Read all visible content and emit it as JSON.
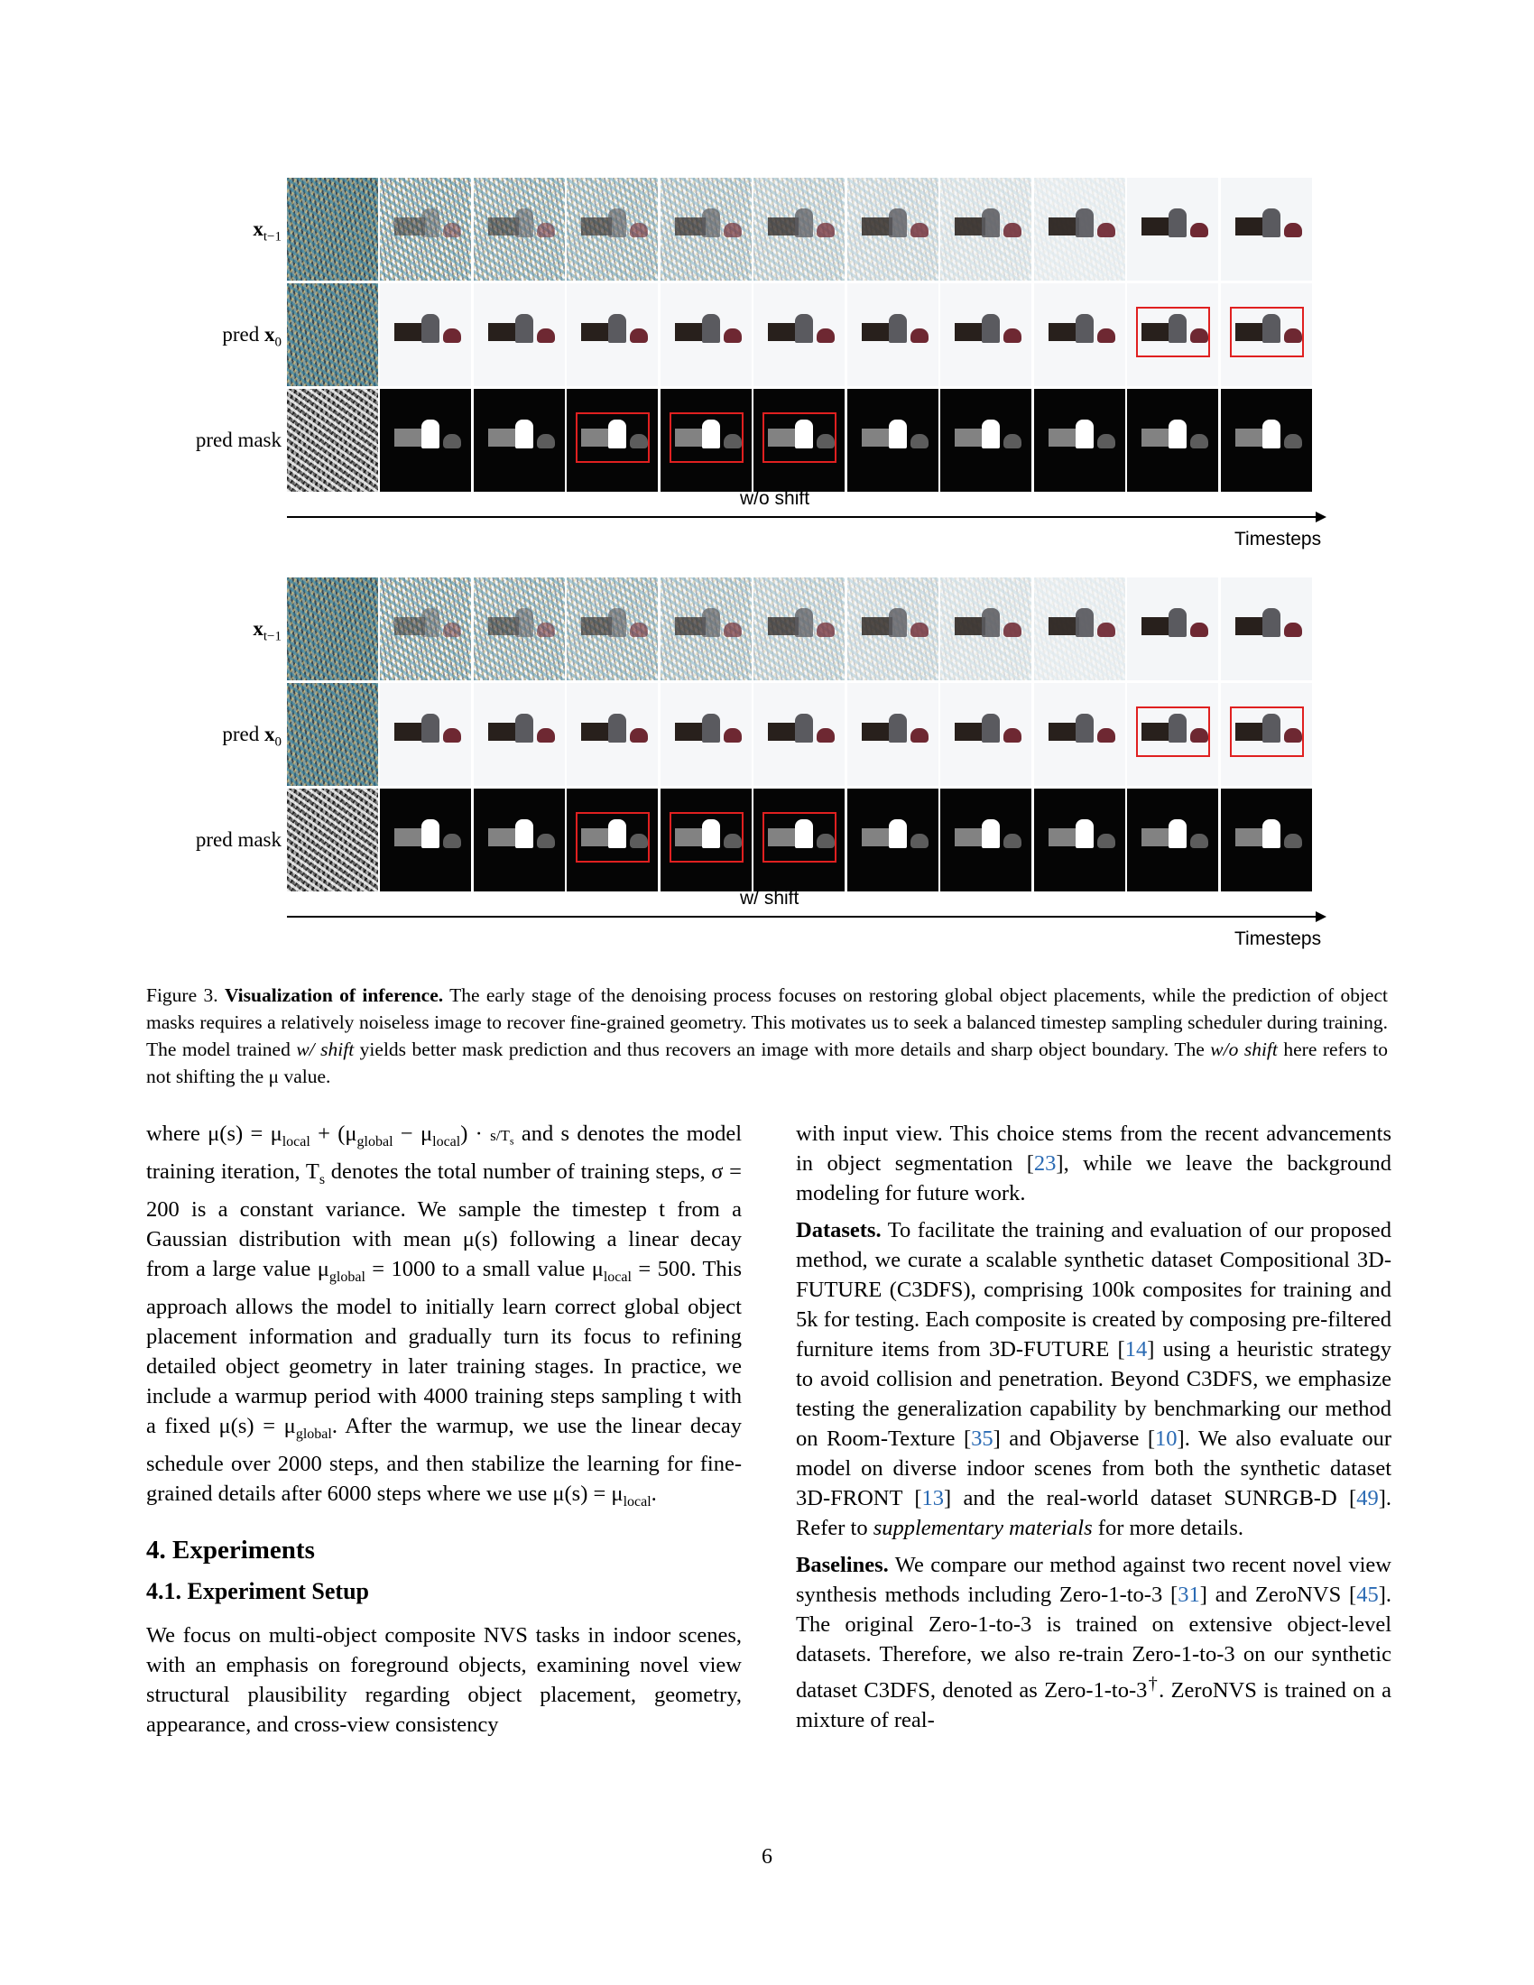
{
  "figure": {
    "panels": [
      {
        "rows": [
          {
            "label_main": "x",
            "label_sub": "t−1",
            "label_pre": "",
            "kind": "xt"
          },
          {
            "label_main": "x",
            "label_sub": "0",
            "label_pre": "pred ",
            "kind": "pred"
          },
          {
            "label_main": "pred mask",
            "label_sub": "",
            "label_pre": "",
            "kind": "mask"
          }
        ],
        "axis_label": "w/o shift",
        "axis_end_label": "Timesteps"
      },
      {
        "rows": [
          {
            "label_main": "x",
            "label_sub": "t−1",
            "label_pre": "",
            "kind": "xt"
          },
          {
            "label_main": "x",
            "label_sub": "0",
            "label_pre": "pred ",
            "kind": "pred"
          },
          {
            "label_main": "pred mask",
            "label_sub": "",
            "label_pre": "",
            "kind": "mask"
          }
        ],
        "axis_label": "w/ shift",
        "axis_end_label": "Timesteps"
      }
    ]
  },
  "caption": {
    "prefix": "Figure 3.",
    "title": "Visualization of inference.",
    "body": "The early stage of the denoising process focuses on restoring global object placements, while the prediction of object masks requires a relatively noiseless image to recover fine-grained geometry. This motivates us to seek a balanced timestep sampling scheduler during training. The model trained ",
    "em1": "w/ shift",
    "body2": " yields better mask prediction and thus recovers an image with more details and sharp object boundary. The ",
    "em2": "w/o shift",
    "body3": " here refers to not shifting the μ value."
  },
  "left_column": {
    "p1_a": "where μ(s) = μ",
    "p1_text": " and s denotes the model training iteration, T",
    "p1_b": " denotes the total number of training steps, σ = 200 is a constant variance. We sample the timestep t from a Gaussian distribution with mean μ(s) following a linear decay from a large value μ",
    "p1_c": " = 1000 to a small value μ",
    "p1_d": " = 500. This approach allows the model to initially learn correct global object placement information and gradually turn its focus to refining detailed object geometry in later training stages. In practice, we include a warmup period with 4000 training steps sampling t with a fixed μ(s) = μ",
    "p1_e": ". After the warmup, we use the linear decay schedule over 2000 steps, and then stabilize the learning for fine-grained details after 6000 steps where we use μ(s) = μ",
    "p1_f": ".",
    "sec_title": "4. Experiments",
    "subsec_title": "4.1. Experiment Setup",
    "p2": "We focus on multi-object composite NVS tasks in indoor scenes, with an emphasis on foreground objects, examining novel view structural plausibility regarding object placement, geometry, appearance, and cross-view consistency"
  },
  "right_column": {
    "p1_a": "with input view. This choice stems from the recent advancements in object segmentation [",
    "p1_cite": "23",
    "p1_b": "], while we leave the background modeling for future work.",
    "ds_title": "Datasets.",
    "ds_a": " To facilitate the training and evaluation of our proposed method, we curate a scalable synthetic dataset Compositional 3D-FUTURE (C3DFS), comprising 100k composites for training and 5k for testing. Each composite is created by composing pre-filtered furniture items from 3D-FUTURE [",
    "ds_c1": "14",
    "ds_b": "] using a heuristic strategy to avoid collision and penetration. Beyond C3DFS, we emphasize testing the generalization capability by benchmarking our method on Room-Texture [",
    "ds_c2": "35",
    "ds_c": "] and Objaverse [",
    "ds_c3": "10",
    "ds_d": "]. We also evaluate our model on diverse indoor scenes from both the synthetic dataset 3D-FRONT [",
    "ds_c4": "13",
    "ds_e": "] and the real-world dataset SUNRGB-D [",
    "ds_c5": "49",
    "ds_f": "]. Refer to ",
    "ds_em": "supplementary materials",
    "ds_g": " for more details.",
    "bl_title": "Baselines.",
    "bl_a": " We compare our method against two recent novel view synthesis methods including Zero-1-to-3 [",
    "bl_c1": "31",
    "bl_b": "] and ZeroNVS [",
    "bl_c2": "45",
    "bl_c": "]. The original Zero-1-to-3 is trained on extensive object-level datasets. Therefore, we also re-train Zero-1-to-3 on our synthetic dataset C3DFS, denoted as Zero-1-to-3",
    "bl_dag": "†",
    "bl_d": ". ZeroNVS is trained on a mixture of real-"
  },
  "page_number": "6"
}
